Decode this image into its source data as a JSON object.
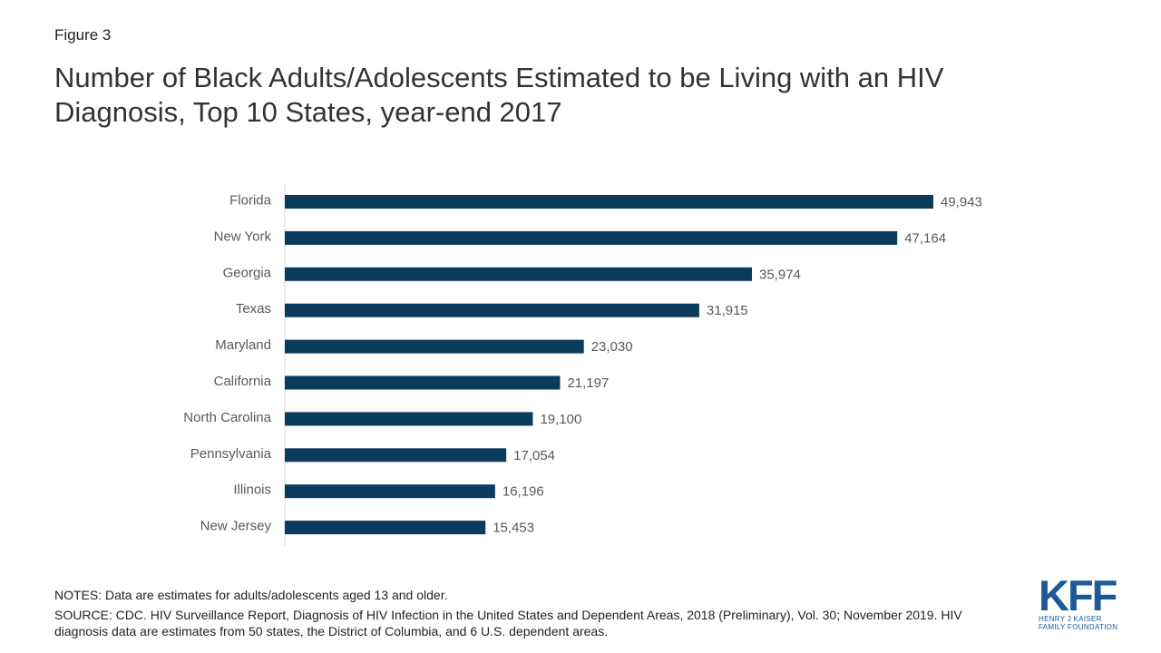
{
  "figure_label": "Figure 3",
  "title": "Number of Black Adults/Adolescents Estimated to be Living with an HIV Diagnosis, Top 10 States, year-end 2017",
  "notes": "NOTES: Data are estimates for adults/adolescents aged 13 and older.",
  "source": "SOURCE: CDC. HIV Surveillance Report, Diagnosis of HIV Infection in the United States and Dependent Areas, 2018 (Preliminary), Vol. 30; November 2019. HIV diagnosis data are estimates from 50 states, the District of Columbia, and 6 U.S. dependent areas.",
  "logo": {
    "mark": "KFF",
    "line1": "HENRY J KAISER",
    "line2": "FAMILY FOUNDATION",
    "color": "#1b5a96"
  },
  "colors": {
    "bar": "#0b3c5d",
    "axis": "#d9d9d9"
  },
  "chart_data": {
    "type": "bar",
    "orientation": "horizontal",
    "categories": [
      "Florida",
      "New York",
      "Georgia",
      "Texas",
      "Maryland",
      "California",
      "North Carolina",
      "Pennsylvania",
      "Illinois",
      "New Jersey"
    ],
    "values": [
      49943,
      47164,
      35974,
      31915,
      23030,
      21197,
      19100,
      17054,
      16196,
      15453
    ],
    "value_labels": [
      "49,943",
      "47,164",
      "35,974",
      "31,915",
      "23,030",
      "21,197",
      "19,100",
      "17,054",
      "16,196",
      "15,453"
    ],
    "xlim": [
      0,
      50000
    ],
    "grid": false,
    "legend": "none"
  }
}
